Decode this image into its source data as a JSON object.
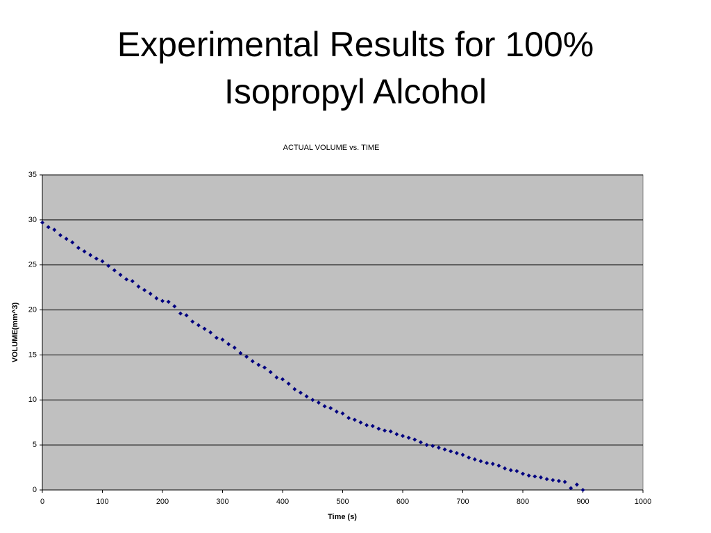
{
  "slide_title": "Experimental Results for 100% Isopropyl Alcohol",
  "chart_data": {
    "type": "scatter",
    "title": "ACTUAL VOLUME vs. TIME",
    "x_label": "Time (s)",
    "y_label": "VOLUME(mm^3)",
    "xlim": [
      0,
      1000
    ],
    "xticks": [
      0,
      100,
      200,
      300,
      400,
      500,
      600,
      700,
      800,
      900,
      1000
    ],
    "ylim": [
      0,
      35
    ],
    "yticks": [
      0,
      5,
      10,
      15,
      20,
      25,
      30,
      35
    ],
    "grid": true,
    "plot_background": "#c0c0c0",
    "series": [
      {
        "name": "ACTUAL VOLUME",
        "color": "#000080",
        "x": [
          0,
          10,
          20,
          30,
          40,
          50,
          60,
          70,
          80,
          90,
          100,
          110,
          120,
          130,
          140,
          150,
          160,
          170,
          180,
          190,
          200,
          210,
          220,
          230,
          240,
          250,
          260,
          270,
          280,
          290,
          300,
          310,
          320,
          330,
          340,
          350,
          360,
          370,
          380,
          390,
          400,
          410,
          420,
          430,
          440,
          450,
          460,
          470,
          480,
          490,
          500,
          510,
          520,
          530,
          540,
          550,
          560,
          570,
          580,
          590,
          600,
          610,
          620,
          630,
          640,
          650,
          660,
          670,
          680,
          690,
          700,
          710,
          720,
          730,
          740,
          750,
          760,
          770,
          780,
          790,
          800,
          810,
          820,
          830,
          840,
          850,
          860,
          870,
          880,
          890,
          900
        ],
        "values": [
          29.7,
          29.2,
          28.9,
          28.3,
          27.9,
          27.5,
          26.9,
          26.5,
          26.1,
          25.7,
          25.4,
          24.9,
          24.4,
          23.9,
          23.4,
          23.2,
          22.6,
          22.2,
          21.8,
          21.3,
          21.0,
          20.9,
          20.4,
          19.6,
          19.4,
          18.7,
          18.3,
          17.9,
          17.5,
          16.9,
          16.7,
          16.2,
          15.8,
          15.2,
          14.8,
          14.3,
          13.9,
          13.6,
          13.1,
          12.5,
          12.3,
          11.8,
          11.2,
          10.8,
          10.4,
          10.0,
          9.7,
          9.3,
          9.1,
          8.7,
          8.5,
          8.0,
          7.8,
          7.5,
          7.2,
          7.1,
          6.8,
          6.6,
          6.5,
          6.2,
          6.0,
          5.8,
          5.6,
          5.3,
          5.0,
          4.9,
          4.7,
          4.5,
          4.3,
          4.1,
          3.9,
          3.6,
          3.4,
          3.2,
          3.0,
          2.9,
          2.7,
          2.4,
          2.2,
          2.1,
          1.8,
          1.6,
          1.5,
          1.4,
          1.2,
          1.1,
          1.0,
          0.9,
          0.2,
          0.6,
          0.0
        ]
      }
    ]
  }
}
